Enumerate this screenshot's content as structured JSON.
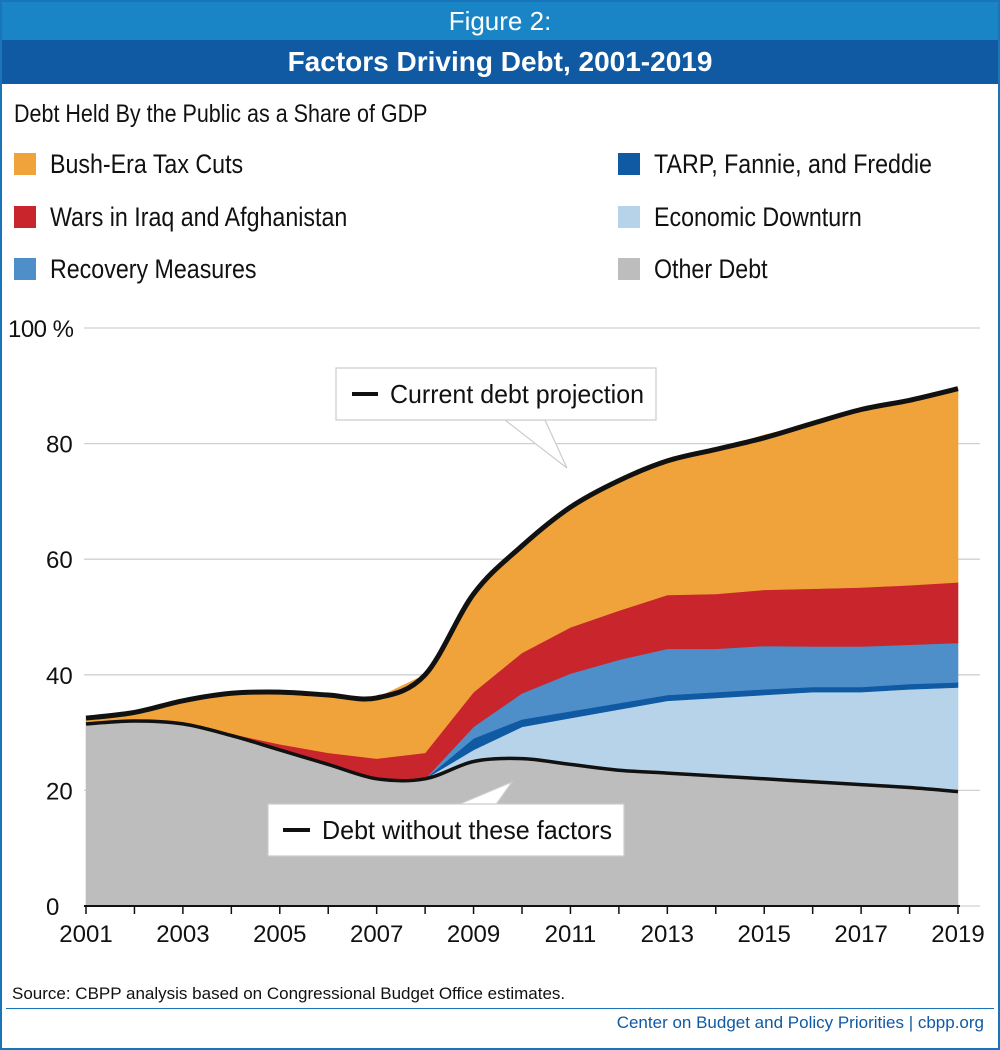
{
  "figure_label": "Figure 2:",
  "title": "Factors Driving Debt, 2001-2019",
  "subtitle": "Debt Held By the Public as a Share of GDP",
  "legend": [
    {
      "label": "Bush-Era Tax Cuts",
      "color": "#f0a33a"
    },
    {
      "label": "Wars in Iraq and Afghanistan",
      "color": "#c8262c"
    },
    {
      "label": "Recovery Measures",
      "color": "#4f8fc9"
    },
    {
      "label": "TARP, Fannie, and Freddie",
      "color": "#0f5aa3"
    },
    {
      "label": "Economic Downturn",
      "color": "#b7d3ea"
    },
    {
      "label": "Other Debt",
      "color": "#bdbdbd"
    }
  ],
  "chart_data": {
    "type": "area",
    "stacked": true,
    "ylabel": "Debt Held By the Public as a Share of GDP",
    "ylim": [
      0,
      100
    ],
    "y_ticks": [
      0,
      20,
      40,
      60,
      80,
      100
    ],
    "y_tick_labels": [
      "0",
      "20",
      "40",
      "60",
      "80",
      "100 %"
    ],
    "x": [
      2001,
      2002,
      2003,
      2004,
      2005,
      2006,
      2007,
      2008,
      2009,
      2010,
      2011,
      2012,
      2013,
      2014,
      2015,
      2016,
      2017,
      2018,
      2019
    ],
    "x_tick_labels": [
      "2001",
      "2003",
      "2005",
      "2007",
      "2009",
      "2011",
      "2013",
      "2015",
      "2017",
      "2019"
    ],
    "series": [
      {
        "name": "Other Debt",
        "color": "#bdbdbd",
        "values": [
          31.5,
          32,
          31.5,
          29.5,
          27,
          24.5,
          22,
          22,
          25,
          25.5,
          24.5,
          23.5,
          23,
          22.5,
          22,
          21.5,
          21,
          20.5,
          19.8
        ]
      },
      {
        "name": "Economic Downturn",
        "color": "#b7d3ea",
        "values": [
          0,
          0,
          0,
          0,
          0,
          0,
          0,
          0,
          2,
          5.5,
          8,
          10.5,
          12.5,
          13.5,
          14.5,
          15.5,
          16,
          17,
          18
        ]
      },
      {
        "name": "TARP, Fannie, and Freddie",
        "color": "#0f5aa3",
        "values": [
          0,
          0,
          0,
          0,
          0,
          0,
          0,
          0,
          2,
          1.3,
          1.2,
          1.1,
          1,
          1,
          1,
          0.9,
          0.9,
          0.9,
          0.9
        ]
      },
      {
        "name": "Recovery Measures",
        "color": "#4f8fc9",
        "values": [
          0,
          0,
          0,
          0,
          0,
          0,
          0,
          0,
          2,
          4.5,
          6.5,
          7.5,
          8,
          7.5,
          7.5,
          7,
          7,
          6.8,
          6.8
        ]
      },
      {
        "name": "Wars in Iraq and Afghanistan",
        "color": "#c8262c",
        "values": [
          0,
          0,
          0,
          0.3,
          1,
          2,
          3.5,
          4.5,
          6,
          7,
          8,
          8.5,
          9.3,
          9.5,
          9.7,
          10,
          10.2,
          10.3,
          10.5
        ]
      },
      {
        "name": "Bush-Era Tax Cuts",
        "color": "#f0a33a",
        "values": [
          1,
          1.5,
          4,
          7,
          9,
          10,
          10.5,
          13.5,
          17,
          18.5,
          20.8,
          22,
          23.2,
          25,
          26.8,
          28.6,
          30.4,
          32,
          33.5
        ]
      }
    ],
    "lines": [
      {
        "name": "Current debt projection",
        "color": "#111111",
        "values": [
          32.5,
          33.5,
          35.5,
          36.8,
          37,
          36.5,
          36,
          40,
          54,
          62.3,
          69,
          73.6,
          77,
          79,
          81,
          83.5,
          85.9,
          87.5,
          89.5
        ]
      },
      {
        "name": "Debt without these factors",
        "color": "#111111",
        "values": [
          31.5,
          32,
          31.5,
          29.5,
          27,
          24.5,
          22,
          22,
          25,
          25.5,
          24.5,
          23.5,
          23,
          22.5,
          22,
          21.5,
          21,
          20.5,
          19.8
        ]
      }
    ],
    "annotations": [
      {
        "label": "Current debt projection",
        "points_to_year": 2012
      },
      {
        "label": "Debt without these factors",
        "points_to_year": 2010
      }
    ]
  },
  "source": "Source:  CBPP analysis based on Congressional Budget Office estimates.",
  "credit": "Center on Budget and Policy Priorities | cbpp.org"
}
